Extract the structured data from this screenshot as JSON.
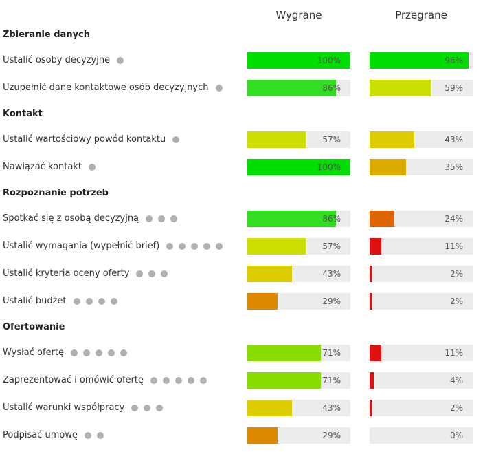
{
  "headers": {
    "won": "Wygrane",
    "lost": "Przegrane"
  },
  "colors": {
    "dot": "#b0b0b0",
    "track": "#ececec"
  },
  "sections": [
    {
      "title": "Zbieranie danych",
      "rows": [
        {
          "label": "Ustalić osoby decyzyjne",
          "dots": 1,
          "won": {
            "pct": "100%",
            "value": 1.0,
            "color": "#00dd00"
          },
          "lost": {
            "pct": "96%",
            "value": 0.96,
            "color": "#00dd00"
          }
        },
        {
          "label": "Uzupełnić dane kontaktowe osób decyzyjnych",
          "dots": 1,
          "won": {
            "pct": "86%",
            "value": 0.86,
            "color": "#33dd22"
          },
          "lost": {
            "pct": "59%",
            "value": 0.59,
            "color": "#ccdd00"
          }
        }
      ]
    },
    {
      "title": "Kontakt",
      "rows": [
        {
          "label": "Ustalić wartościowy powód kontaktu",
          "dots": 1,
          "won": {
            "pct": "57%",
            "value": 0.57,
            "color": "#ccdd00"
          },
          "lost": {
            "pct": "43%",
            "value": 0.43,
            "color": "#ddcc00"
          }
        },
        {
          "label": "Nawiązać kontakt",
          "dots": 1,
          "won": {
            "pct": "100%",
            "value": 1.0,
            "color": "#00dd00"
          },
          "lost": {
            "pct": "35%",
            "value": 0.35,
            "color": "#ddaa00"
          }
        }
      ]
    },
    {
      "title": "Rozpoznanie potrzeb",
      "rows": [
        {
          "label": "Spotkać się z osobą decyzyjną",
          "dots": 3,
          "won": {
            "pct": "86%",
            "value": 0.86,
            "color": "#33dd22"
          },
          "lost": {
            "pct": "24%",
            "value": 0.24,
            "color": "#dd6600"
          }
        },
        {
          "label": "Ustalić wymagania (wypełnić brief)",
          "dots": 5,
          "won": {
            "pct": "57%",
            "value": 0.57,
            "color": "#ccdd00"
          },
          "lost": {
            "pct": "11%",
            "value": 0.11,
            "color": "#dd1111"
          }
        },
        {
          "label": "Ustalić kryteria oceny oferty",
          "dots": 3,
          "won": {
            "pct": "43%",
            "value": 0.43,
            "color": "#ddcc00"
          },
          "lost": {
            "pct": "2%",
            "value": 0.02,
            "color": "#dd1111"
          }
        },
        {
          "label": "Ustalić budżet",
          "dots": 4,
          "won": {
            "pct": "29%",
            "value": 0.29,
            "color": "#dd8800"
          },
          "lost": {
            "pct": "2%",
            "value": 0.02,
            "color": "#dd1111"
          }
        }
      ]
    },
    {
      "title": "Ofertowanie",
      "rows": [
        {
          "label": "Wysłać ofertę",
          "dots": 5,
          "won": {
            "pct": "71%",
            "value": 0.71,
            "color": "#88dd00"
          },
          "lost": {
            "pct": "11%",
            "value": 0.11,
            "color": "#dd1111"
          }
        },
        {
          "label": "Zaprezentować i omówić ofertę",
          "dots": 5,
          "won": {
            "pct": "71%",
            "value": 0.71,
            "color": "#88dd00"
          },
          "lost": {
            "pct": "4%",
            "value": 0.04,
            "color": "#dd1111"
          }
        },
        {
          "label": "Ustalić warunki współpracy",
          "dots": 3,
          "won": {
            "pct": "43%",
            "value": 0.43,
            "color": "#ddcc00"
          },
          "lost": {
            "pct": "2%",
            "value": 0.02,
            "color": "#dd1111"
          }
        },
        {
          "label": "Podpisać umowę",
          "dots": 2,
          "won": {
            "pct": "29%",
            "value": 0.29,
            "color": "#dd8800"
          },
          "lost": {
            "pct": "0%",
            "value": 0.0,
            "color": "#dd1111"
          }
        }
      ]
    }
  ]
}
